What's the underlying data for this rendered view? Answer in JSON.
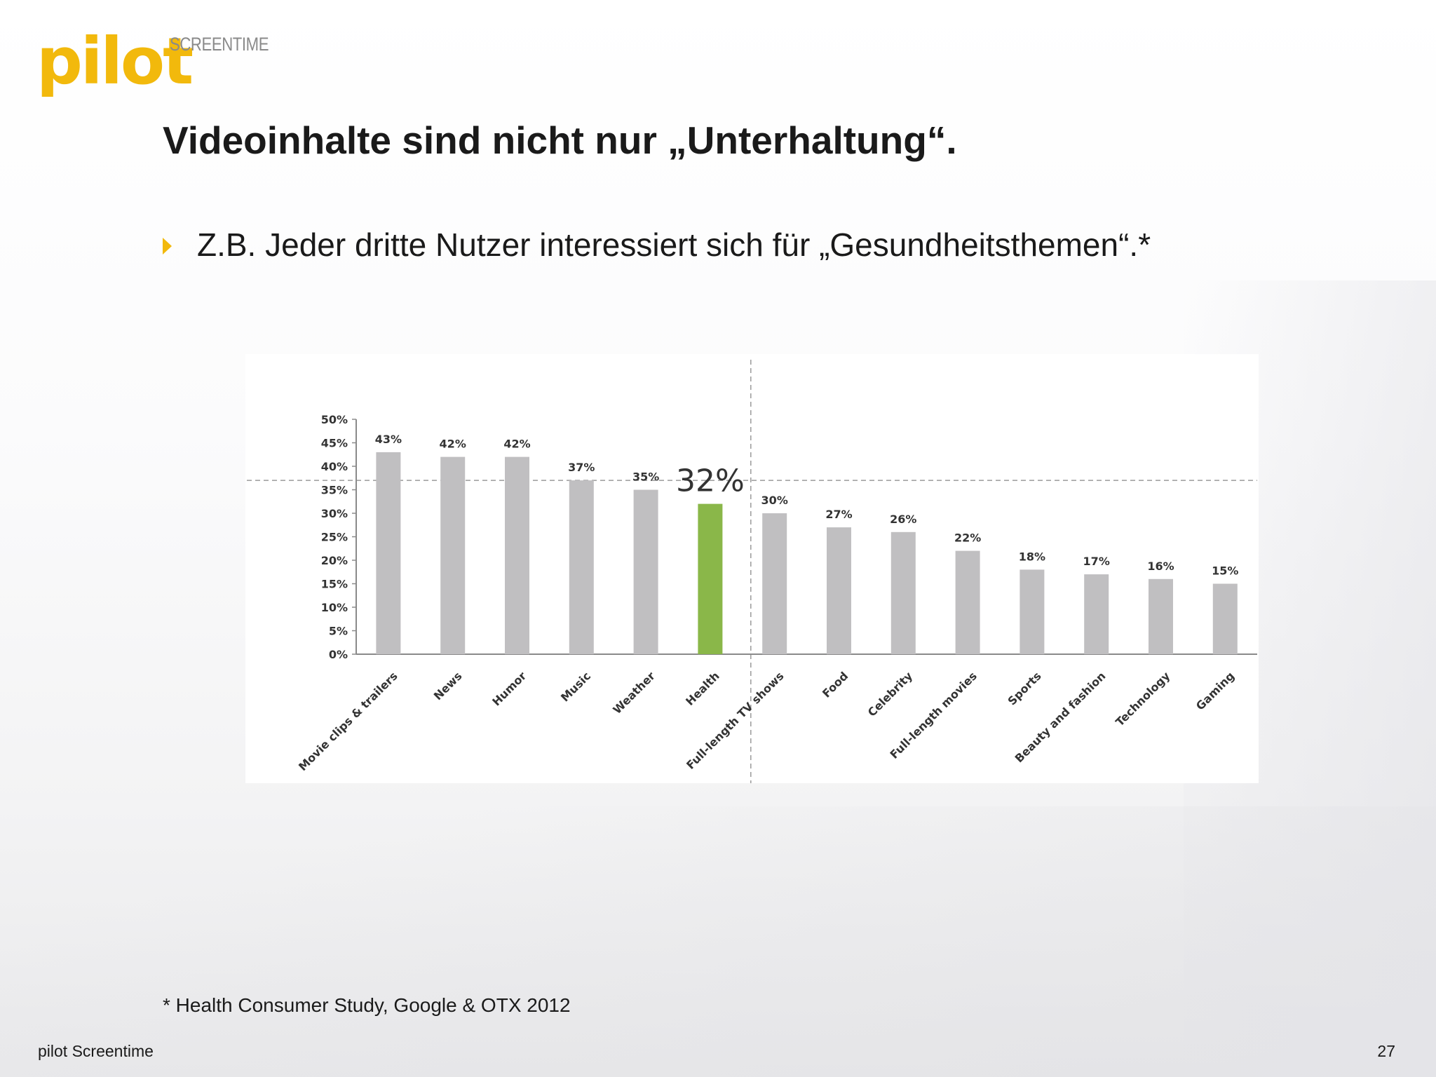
{
  "header": {
    "logo_text": "pilot",
    "logo_subtext": "SCREENTIME"
  },
  "slide": {
    "title": "Videoinhalte sind nicht nur „Unterhaltung“.",
    "bullet": "Z.B. Jeder dritte Nutzer interessiert sich für „Gesundheitsthemen“.*",
    "footnote": "* Health Consumer Study, Google & OTX 2012"
  },
  "footer": {
    "left": "pilot Screentime",
    "page_number": "27"
  },
  "colors": {
    "accent": "#f2b90c",
    "bar": "#c0bfc1",
    "highlight_bar": "#8ab749"
  },
  "chart_data": {
    "type": "bar",
    "categories": [
      "Movie clips & trailers",
      "News",
      "Humor",
      "Music",
      "Weather",
      "Health",
      "Full-length TV shows",
      "Food",
      "Celebrity",
      "Full-length movies",
      "Sports",
      "Beauty and fashion",
      "Technology",
      "Gaming"
    ],
    "values": [
      43,
      42,
      42,
      37,
      35,
      32,
      30,
      27,
      26,
      22,
      18,
      17,
      16,
      15
    ],
    "value_labels": [
      "43%",
      "42%",
      "42%",
      "37%",
      "35%",
      "32%",
      "30%",
      "27%",
      "26%",
      "22%",
      "18%",
      "17%",
      "16%",
      "15%"
    ],
    "highlight_category": "Health",
    "y_ticks": [
      "0%",
      "5%",
      "10%",
      "15%",
      "20%",
      "25%",
      "30%",
      "35%",
      "40%",
      "45%",
      "50%"
    ],
    "ylim": [
      0,
      50
    ],
    "reference_line_value": 37,
    "grid": false
  }
}
